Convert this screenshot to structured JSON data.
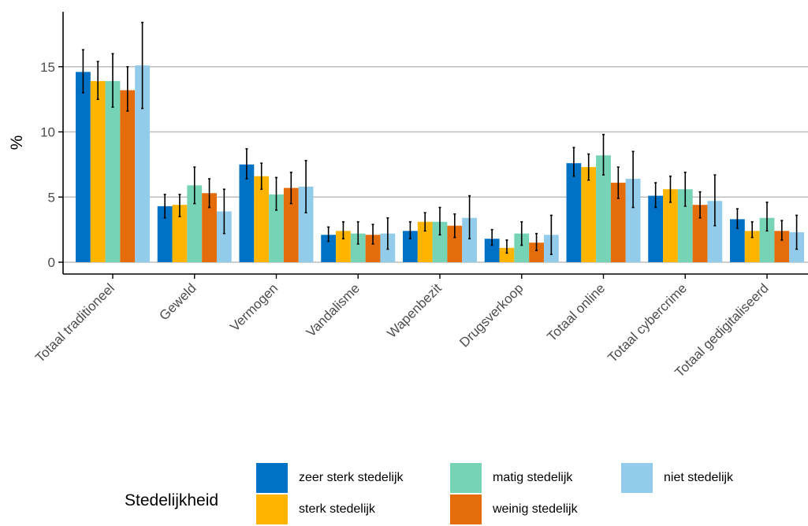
{
  "chart_data": {
    "type": "bar",
    "title": "",
    "xlabel": "",
    "ylabel": "%",
    "ylim": [
      -0.8,
      19
    ],
    "yticks": [
      0,
      5,
      10,
      15
    ],
    "grid": "horizontal major",
    "legend_position": "bottom",
    "legend_title": "Stedelijkheid",
    "categories": [
      "Totaal traditioneel",
      "Geweld",
      "Vermogen",
      "Vandalisme",
      "Wapenbezit",
      "Drugsverkoop",
      "Totaal online",
      "Totaal cybercrime",
      "Totaal gedigitaliseerd"
    ],
    "series": [
      {
        "name": "zeer sterk stedelijk",
        "color": "#0072C6",
        "values": [
          14.6,
          4.3,
          7.5,
          2.1,
          2.4,
          1.8,
          7.6,
          5.1,
          3.3
        ],
        "ci_low": [
          13.0,
          3.4,
          6.4,
          1.6,
          1.8,
          1.3,
          6.6,
          4.2,
          2.6
        ],
        "ci_high": [
          16.3,
          5.2,
          8.7,
          2.7,
          3.1,
          2.5,
          8.8,
          6.1,
          4.1
        ]
      },
      {
        "name": "sterk stedelijk",
        "color": "#FFB400",
        "values": [
          13.9,
          4.4,
          6.6,
          2.4,
          3.1,
          1.1,
          7.3,
          5.6,
          2.4
        ],
        "ci_low": [
          12.5,
          3.5,
          5.6,
          1.8,
          2.4,
          0.7,
          6.3,
          4.6,
          1.9
        ],
        "ci_high": [
          15.4,
          5.2,
          7.6,
          3.1,
          3.8,
          1.7,
          8.3,
          6.6,
          3.1
        ]
      },
      {
        "name": "matig stedelijk",
        "color": "#76D3B6",
        "values": [
          13.9,
          5.9,
          5.2,
          2.2,
          3.1,
          2.2,
          8.2,
          5.6,
          3.4
        ],
        "ci_low": [
          11.9,
          4.5,
          4.0,
          1.4,
          2.1,
          1.3,
          6.7,
          4.3,
          2.4
        ],
        "ci_high": [
          16.0,
          7.3,
          6.5,
          3.1,
          4.2,
          3.1,
          9.8,
          6.9,
          4.6
        ]
      },
      {
        "name": "weinig stedelijk",
        "color": "#E46C0A",
        "values": [
          13.2,
          5.3,
          5.7,
          2.1,
          2.8,
          1.5,
          6.1,
          4.4,
          2.4
        ],
        "ci_low": [
          11.6,
          4.2,
          4.5,
          1.4,
          1.9,
          0.9,
          4.9,
          3.4,
          1.7
        ],
        "ci_high": [
          15.0,
          6.4,
          6.9,
          2.9,
          3.7,
          2.2,
          7.3,
          5.4,
          3.2
        ]
      },
      {
        "name": "niet stedelijk",
        "color": "#93CCEA",
        "values": [
          15.1,
          3.9,
          5.8,
          2.2,
          3.4,
          2.1,
          6.4,
          4.7,
          2.3
        ],
        "ci_low": [
          11.8,
          2.2,
          3.8,
          1.0,
          1.8,
          0.6,
          4.2,
          2.8,
          1.0
        ],
        "ci_high": [
          18.4,
          5.6,
          7.8,
          3.4,
          5.1,
          3.6,
          8.5,
          6.7,
          3.6
        ]
      }
    ]
  }
}
